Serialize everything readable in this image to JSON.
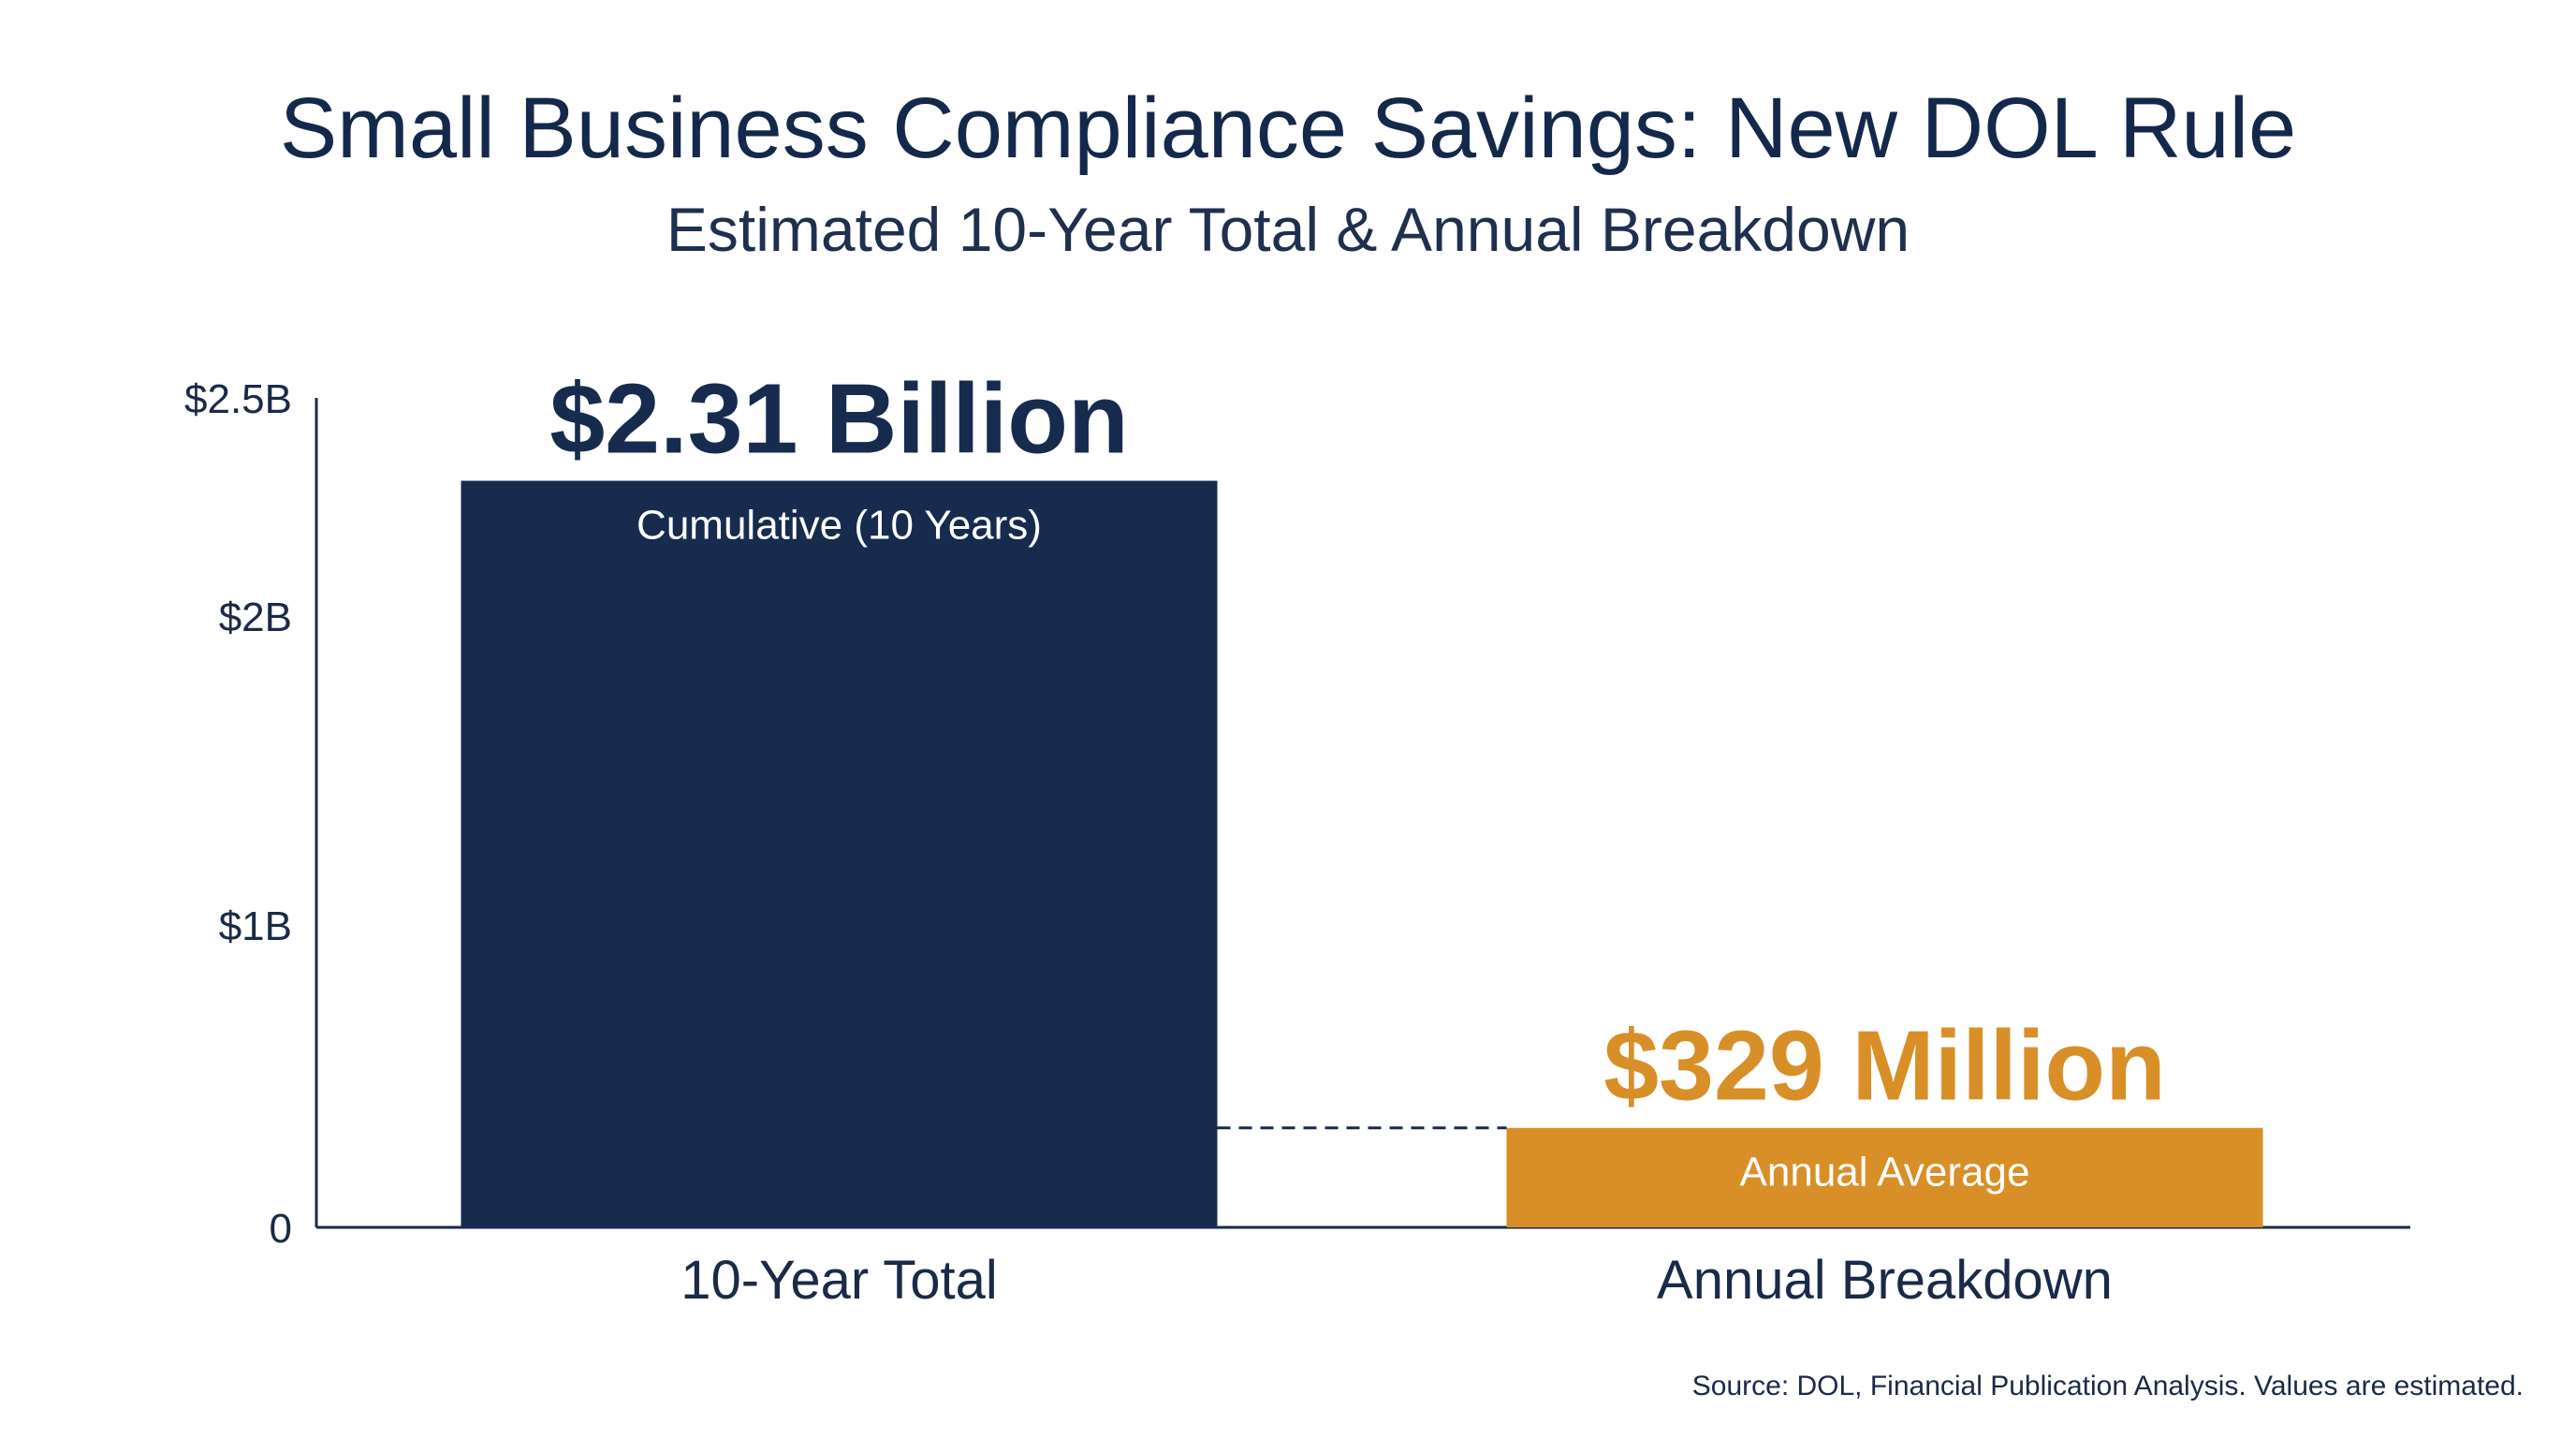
{
  "chart_data": {
    "type": "bar",
    "title": "Small Business Compliance Savings: New DOL Rule",
    "subtitle": "Estimated 10-Year Total & Annual Breakdown",
    "categories": [
      "10-Year Total",
      "Annual Breakdown"
    ],
    "values": [
      2.31,
      0.329
    ],
    "value_labels": [
      "$2.31 Billion",
      "$329 Million"
    ],
    "bar_labels": [
      "Cumulative (10 Years)",
      "Annual Average"
    ],
    "colors": [
      "#162b4e",
      "#d98f27"
    ],
    "ylim": [
      0,
      2.5
    ],
    "yticks": [
      {
        "value": 0,
        "label": "0"
      },
      {
        "value": 1,
        "label": "$1B"
      },
      {
        "value": 2,
        "label": "$2B"
      },
      {
        "value": 2.5,
        "label": "$2.5B"
      }
    ],
    "xlabel": "",
    "ylabel": "",
    "grid": false,
    "reference_line": {
      "value": 0.329,
      "style": "dashed"
    },
    "source": "Source: DOL, Financial Publication Analysis. Values are estimated."
  }
}
